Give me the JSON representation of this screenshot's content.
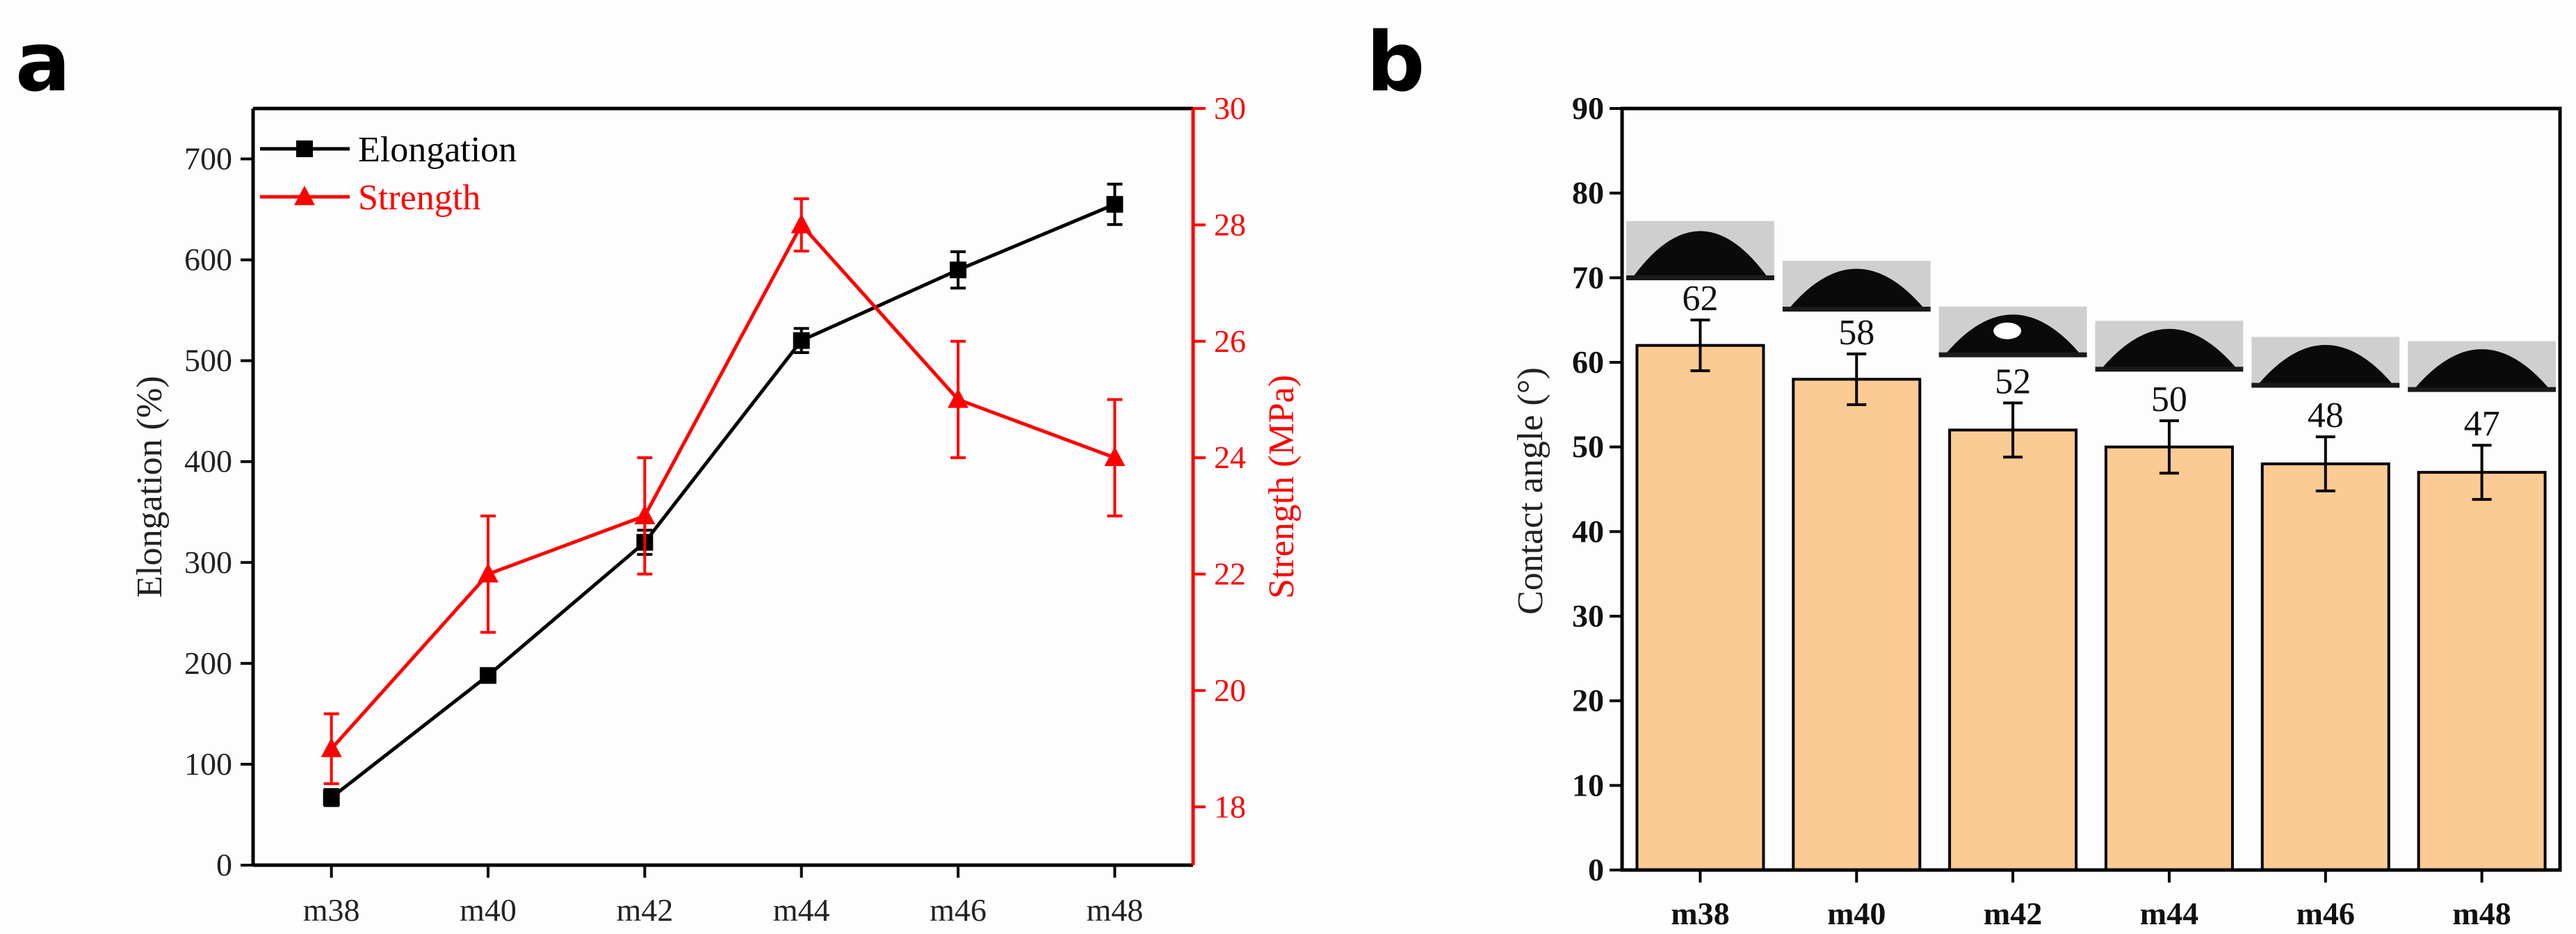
{
  "panels": {
    "a": "a",
    "b": "b"
  },
  "chart_data": [
    {
      "type": "line",
      "panel": "a",
      "categories": [
        "m38",
        "m40",
        "m42",
        "m44",
        "m46",
        "m48"
      ],
      "xlabel": "",
      "ylabel": "Elongation (%)",
      "y2label": "Strength (MPa)",
      "ylim": [
        0,
        750
      ],
      "y2lim": [
        17,
        30
      ],
      "yticks": [
        0,
        100,
        200,
        300,
        400,
        500,
        600,
        700
      ],
      "y2ticks": [
        18,
        20,
        22,
        24,
        26,
        28,
        30
      ],
      "legend_position": "top-left",
      "series": [
        {
          "name": "Elongation",
          "axis": "left",
          "color": "#000000",
          "marker": "square",
          "values": [
            67,
            188,
            320,
            520,
            590,
            655
          ],
          "errors": [
            8,
            6,
            12,
            12,
            18,
            20
          ]
        },
        {
          "name": "Strength",
          "axis": "right",
          "color": "#ff0000",
          "marker": "triangle",
          "values": [
            19,
            22,
            23,
            28,
            25,
            24
          ],
          "errors": [
            0.6,
            1,
            1,
            0.45,
            1,
            1
          ]
        }
      ]
    },
    {
      "type": "bar",
      "panel": "b",
      "categories": [
        "m38",
        "m40",
        "m42",
        "m44",
        "m46",
        "m48"
      ],
      "values": [
        62,
        58,
        52,
        50,
        48,
        47
      ],
      "errors": [
        3,
        3,
        3.2,
        3.1,
        3.2,
        3.2
      ],
      "data_labels": [
        "62",
        "58",
        "52",
        "50",
        "48",
        "47"
      ],
      "xlabel": "",
      "ylabel": "Contact angle (°)",
      "ylim": [
        0,
        90
      ],
      "yticks": [
        0,
        10,
        20,
        30,
        40,
        50,
        60,
        70,
        80,
        90
      ],
      "bar_color": "#fccb93",
      "insets": "droplet images above each bar"
    }
  ]
}
